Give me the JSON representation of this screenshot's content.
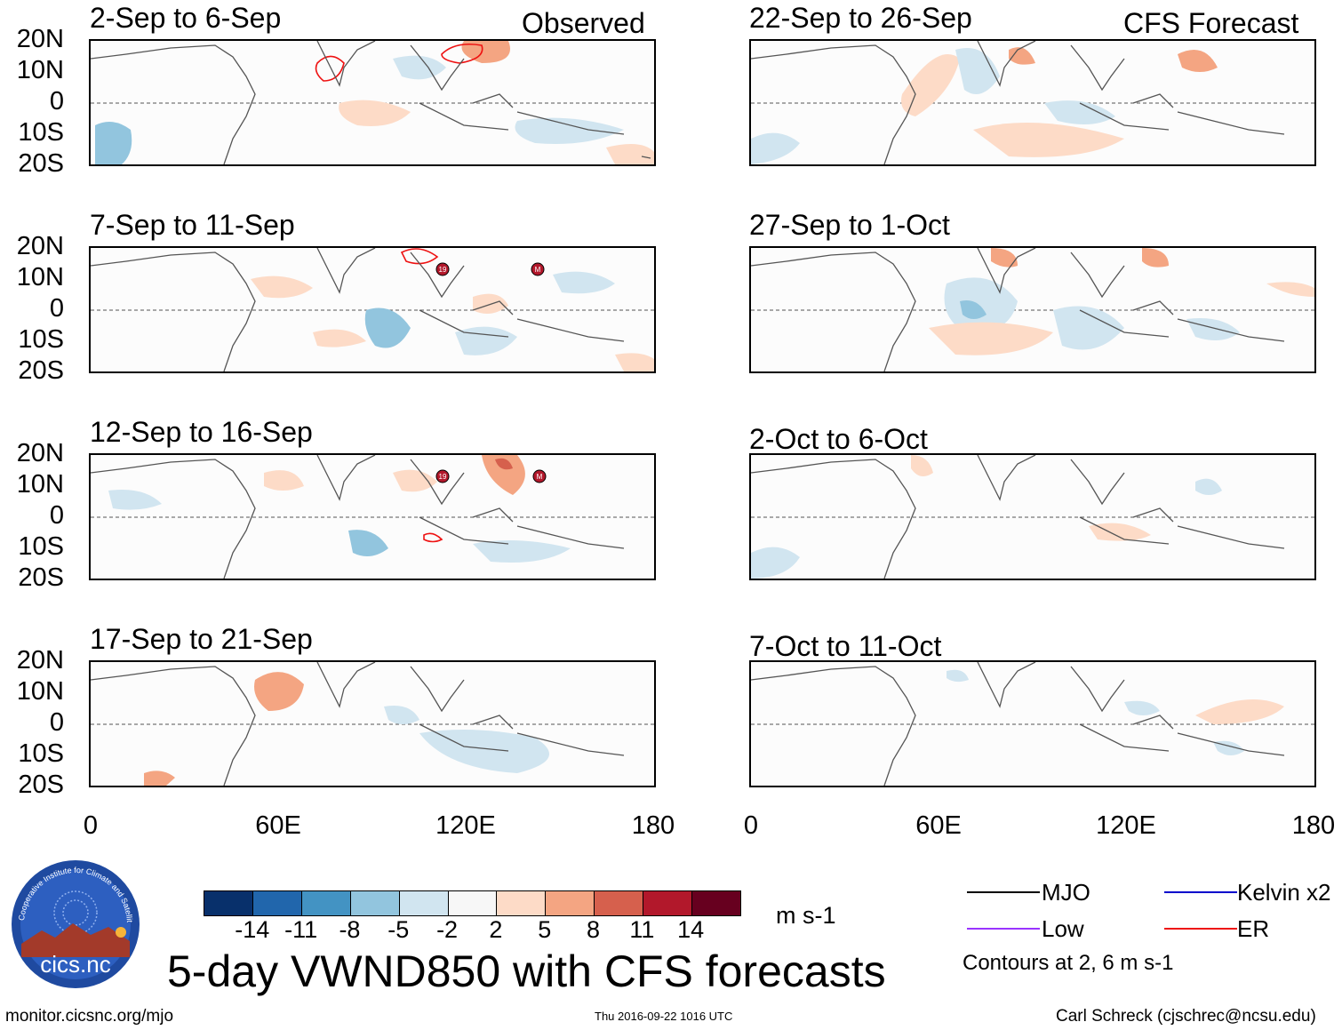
{
  "panels_left": [
    {
      "title": "2-Sep to 6-Sep",
      "tag": "Observed"
    },
    {
      "title": "7-Sep to 11-Sep",
      "tag": ""
    },
    {
      "title": "12-Sep to 16-Sep",
      "tag": ""
    },
    {
      "title": "17-Sep to 21-Sep",
      "tag": ""
    }
  ],
  "panels_right": [
    {
      "title": "22-Sep to 26-Sep",
      "tag": "CFS Forecast"
    },
    {
      "title": "27-Sep to 1-Oct",
      "tag": ""
    },
    {
      "title": "2-Oct to 6-Oct",
      "tag": ""
    },
    {
      "title": "7-Oct to 11-Oct",
      "tag": ""
    }
  ],
  "lat_labels": [
    "20N",
    "10N",
    "0",
    "10S",
    "20S"
  ],
  "lon_labels": [
    "0",
    "60E",
    "120E",
    "180"
  ],
  "colorbar": {
    "colors": [
      "#08306b",
      "#2166ac",
      "#4393c3",
      "#92c5de",
      "#d1e5f0",
      "#f7f7f7",
      "#fddbc7",
      "#f4a582",
      "#d6604d",
      "#b2182b",
      "#67001f"
    ],
    "labels": [
      "-14",
      "-11",
      "-8",
      "-5",
      "-2",
      "2",
      "5",
      "8",
      "11",
      "14"
    ],
    "units": "m s-1"
  },
  "main_title": "5-day VWND850 with CFS forecasts",
  "logo": {
    "text": "cics.nc",
    "ring_text": "Cooperative Institute for Climate and Satellites"
  },
  "legend": {
    "items": [
      {
        "label": "MJO",
        "color": "#000000"
      },
      {
        "label": "Kelvin x2",
        "color": "#0000cc"
      },
      {
        "label": "Low",
        "color": "#9933ff"
      },
      {
        "label": "ER",
        "color": "#ee1111"
      }
    ],
    "note": "Contours at 2, 6 m s-1"
  },
  "footer": {
    "url": "monitor.cicsnc.org/mjo",
    "timestamp": "Thu 2016-09-22 1016 UTC",
    "credit": "Carl Schreck (cjschrec@ncsu.edu)"
  },
  "storm_markers": [
    "19",
    "M"
  ]
}
